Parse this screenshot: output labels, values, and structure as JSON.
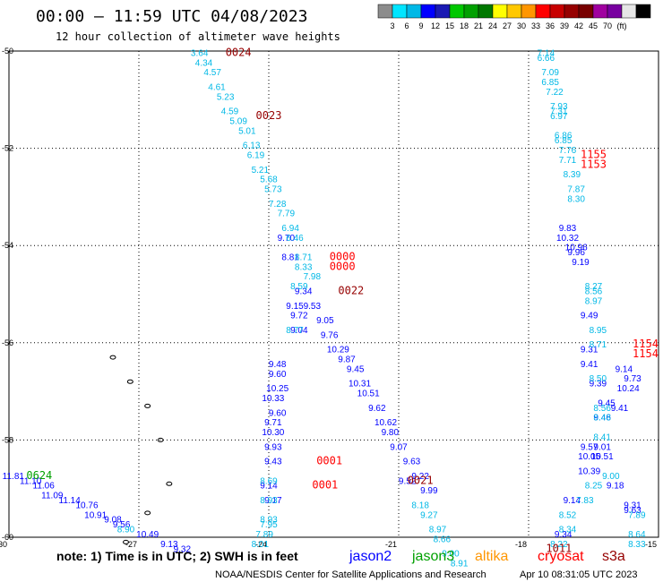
{
  "header": {
    "title": "00:00 – 11:59 UTC 04/08/2023",
    "subtitle": "12 hour collection of altimeter wave heights"
  },
  "legend": {
    "colors": [
      "#8c8c8c",
      "#00e5ff",
      "#00b8e6",
      "#0000ff",
      "#1a1ab3",
      "#00c800",
      "#00a000",
      "#007800",
      "#ffff00",
      "#ffc800",
      "#ff9600",
      "#ff0000",
      "#c80000",
      "#960000",
      "#780000",
      "#a000a0",
      "#7800a0",
      "#e6e6e6",
      "#000000"
    ],
    "labels": [
      "3",
      "6",
      "9",
      "12",
      "15",
      "18",
      "21",
      "24",
      "27",
      "30",
      "33",
      "36",
      "39",
      "42",
      "45",
      "70",
      "(ft)"
    ]
  },
  "footer": {
    "note": "note: 1) Time is in UTC; 2) SWH is in feet",
    "satellites": [
      {
        "name": "jason2",
        "color": "#0000ff"
      },
      {
        "name": "jason3",
        "color": "#00a000"
      },
      {
        "name": "altika",
        "color": "#ff9600"
      },
      {
        "name": "cryosat",
        "color": "#ff0000"
      },
      {
        "name": "s3a",
        "color": "#960000"
      }
    ],
    "credit": "NOAA/NESDIS Center for Satellite Applications and Research",
    "timestamp": "Apr 10 08:31:05 UTC 2023"
  },
  "chart_data": {
    "type": "scatter",
    "xlim": [
      -30,
      -15
    ],
    "ylim": [
      -60,
      -50
    ],
    "x_ticks": [
      {
        "v": -30,
        "label": "-30"
      },
      {
        "v": -27,
        "label": "-27"
      },
      {
        "v": -24,
        "label": "-24"
      },
      {
        "v": -21,
        "label": "-21"
      },
      {
        "v": -18,
        "label": "-18"
      },
      {
        "v": -15,
        "label": "-15"
      }
    ],
    "y_ticks": [
      {
        "v": -50,
        "label": "-50"
      },
      {
        "v": -52,
        "label": "-52"
      },
      {
        "v": -54,
        "label": "-54"
      },
      {
        "v": -56,
        "label": "-56"
      },
      {
        "v": -58,
        "label": "-58"
      },
      {
        "v": -60,
        "label": "-60"
      }
    ],
    "grid": true,
    "series": [
      {
        "name": "jason2",
        "color": "#0000ff",
        "points": [
          [
            -23.6,
            -53.9,
            "9.70"
          ],
          [
            -23.5,
            -54.3,
            "8.81"
          ],
          [
            -23.2,
            -55.0,
            "9.34"
          ],
          [
            -23.4,
            -55.3,
            "9.15"
          ],
          [
            -23.3,
            -55.5,
            "9.72"
          ],
          [
            -23.3,
            -55.8,
            "9.04"
          ],
          [
            -23.0,
            -55.3,
            "9.53"
          ],
          [
            -22.7,
            -55.6,
            "9.05"
          ],
          [
            -22.6,
            -55.9,
            "9.76"
          ],
          [
            -22.4,
            -56.2,
            "10.29"
          ],
          [
            -22.2,
            -56.4,
            "9.87"
          ],
          [
            -22.0,
            -56.6,
            "9.45"
          ],
          [
            -21.9,
            -56.9,
            "10.31"
          ],
          [
            -21.7,
            -57.1,
            "10.51"
          ],
          [
            -21.5,
            -57.4,
            "9.62"
          ],
          [
            -21.3,
            -57.7,
            "10.62"
          ],
          [
            -21.2,
            -57.9,
            "9.80"
          ],
          [
            -21.0,
            -58.2,
            "9.07"
          ],
          [
            -20.7,
            -58.5,
            "9.63"
          ],
          [
            -20.5,
            -58.8,
            "9.22"
          ],
          [
            -20.8,
            -58.9,
            "9.52"
          ],
          [
            -20.3,
            -59.1,
            "9.99"
          ],
          [
            -23.8,
            -56.5,
            "9.48"
          ],
          [
            -23.8,
            -56.7,
            "9.60"
          ],
          [
            -23.8,
            -57.0,
            "10.25"
          ],
          [
            -23.9,
            -57.2,
            "10.33"
          ],
          [
            -23.8,
            -57.5,
            "9.60"
          ],
          [
            -23.9,
            -57.7,
            "9.71"
          ],
          [
            -23.9,
            -57.9,
            "10.30"
          ],
          [
            -23.9,
            -58.2,
            "9.93"
          ],
          [
            -23.9,
            -58.5,
            "9.43"
          ],
          [
            -24.0,
            -59.0,
            "9.14"
          ],
          [
            -23.9,
            -59.3,
            "9.17"
          ],
          [
            -29.9,
            -58.8,
            "11.81"
          ],
          [
            -29.5,
            -58.9,
            "11.10"
          ],
          [
            -29.2,
            -59.0,
            "11.06"
          ],
          [
            -29.0,
            -59.2,
            "11.09"
          ],
          [
            -28.6,
            -59.3,
            "11.14"
          ],
          [
            -28.2,
            -59.4,
            "10.76"
          ],
          [
            -28.0,
            -59.6,
            "10.91"
          ],
          [
            -27.6,
            -59.7,
            "9.08"
          ],
          [
            -27.4,
            -59.8,
            "9.56"
          ],
          [
            -26.8,
            -60.0,
            "10.49"
          ],
          [
            -26.3,
            -60.2,
            "9.13"
          ],
          [
            -26.0,
            -60.3,
            "9.32"
          ],
          [
            -17.1,
            -53.7,
            "9.83"
          ],
          [
            -17.1,
            -53.9,
            "10.32"
          ],
          [
            -16.9,
            -54.1,
            "10.96"
          ],
          [
            -16.9,
            -54.2,
            "9.96"
          ],
          [
            -16.8,
            -54.4,
            "9.19"
          ],
          [
            -16.6,
            -55.5,
            "9.49"
          ],
          [
            -16.6,
            -56.2,
            "9.31"
          ],
          [
            -16.6,
            -56.5,
            "9.41"
          ],
          [
            -16.4,
            -56.9,
            "9.39"
          ],
          [
            -16.2,
            -57.3,
            "9.45"
          ],
          [
            -15.9,
            -57.4,
            "9.41"
          ],
          [
            -16.3,
            -57.6,
            "9.46"
          ],
          [
            -16.6,
            -58.2,
            "9.57"
          ],
          [
            -16.3,
            -58.2,
            "9.01"
          ],
          [
            -16.6,
            -58.4,
            "10.05"
          ],
          [
            -16.3,
            -58.4,
            "10.51"
          ],
          [
            -16.6,
            -58.7,
            "10.39"
          ],
          [
            -16.0,
            -59.0,
            "9.18"
          ],
          [
            -17.0,
            -59.3,
            "9.14"
          ],
          [
            -15.8,
            -56.6,
            "9.14"
          ],
          [
            -15.6,
            -56.8,
            "9.73"
          ],
          [
            -15.7,
            -57.0,
            "10.24"
          ],
          [
            -17.2,
            -60.0,
            "9.34"
          ],
          [
            -15.6,
            -59.4,
            "9.31"
          ],
          [
            -15.6,
            -59.5,
            "9.63"
          ]
        ]
      },
      {
        "name": "jason3",
        "color": "#00b8e6",
        "points": [
          [
            -25.6,
            -50.1,
            "3.64"
          ],
          [
            -25.5,
            -50.3,
            "4.34"
          ],
          [
            -25.3,
            -50.5,
            "4.57"
          ],
          [
            -25.2,
            -50.8,
            "4.61"
          ],
          [
            -25.0,
            -51.0,
            "5.23"
          ],
          [
            -24.9,
            -51.3,
            "4.59"
          ],
          [
            -24.7,
            -51.5,
            "5.09"
          ],
          [
            -24.5,
            -51.7,
            "5.01"
          ],
          [
            -24.4,
            -52.0,
            "6.13"
          ],
          [
            -24.3,
            -52.2,
            "6.19"
          ],
          [
            -24.2,
            -52.5,
            "5.21"
          ],
          [
            -24.0,
            -52.7,
            "5.68"
          ],
          [
            -23.9,
            -52.9,
            "5.73"
          ],
          [
            -23.8,
            -53.2,
            "7.28"
          ],
          [
            -23.6,
            -53.4,
            "7.79"
          ],
          [
            -23.5,
            -53.7,
            "6.94"
          ],
          [
            -23.4,
            -53.9,
            "6.46"
          ],
          [
            -23.2,
            -54.3,
            "8.71"
          ],
          [
            -23.2,
            -54.5,
            "8.33"
          ],
          [
            -23.0,
            -54.7,
            "7.98"
          ],
          [
            -23.3,
            -54.9,
            "8.59"
          ],
          [
            -23.4,
            -55.8,
            "8.77"
          ],
          [
            -24.0,
            -58.9,
            "8.69"
          ],
          [
            -24.0,
            -59.3,
            "8.93"
          ],
          [
            -24.0,
            -59.7,
            "8.93"
          ],
          [
            -24.0,
            -59.8,
            "7.95"
          ],
          [
            -24.1,
            -60.0,
            "7.89"
          ],
          [
            -24.2,
            -60.2,
            "8.01"
          ],
          [
            -20.5,
            -59.4,
            "8.18"
          ],
          [
            -20.3,
            -59.6,
            "9.27"
          ],
          [
            -20.1,
            -59.9,
            "8.97"
          ],
          [
            -20.0,
            -60.1,
            "8.66"
          ],
          [
            -19.8,
            -60.4,
            "9.00"
          ],
          [
            -19.6,
            -60.6,
            "8.91"
          ],
          [
            -27.3,
            -59.9,
            "8.90"
          ],
          [
            -17.6,
            -50.1,
            "7.14"
          ],
          [
            -17.6,
            -50.2,
            "6.66"
          ],
          [
            -17.5,
            -50.5,
            "7.09"
          ],
          [
            -17.5,
            -50.7,
            "6.85"
          ],
          [
            -17.4,
            -50.9,
            "7.22"
          ],
          [
            -17.3,
            -51.2,
            "7.93"
          ],
          [
            -17.3,
            -51.3,
            "7.31"
          ],
          [
            -17.3,
            -51.4,
            "6.97"
          ],
          [
            -17.2,
            -51.8,
            "6.86"
          ],
          [
            -17.2,
            -51.9,
            "6.85"
          ],
          [
            -17.1,
            -52.1,
            "7.76"
          ],
          [
            -17.1,
            -52.3,
            "7.71"
          ],
          [
            -17.0,
            -52.6,
            "8.39"
          ],
          [
            -16.9,
            -52.9,
            "7.87"
          ],
          [
            -16.9,
            -53.1,
            "8.30"
          ],
          [
            -16.5,
            -54.9,
            "8.27"
          ],
          [
            -16.5,
            -55.0,
            "8.56"
          ],
          [
            -16.5,
            -55.2,
            "8.97"
          ],
          [
            -16.4,
            -55.8,
            "8.95"
          ],
          [
            -16.4,
            -56.1,
            "8.71"
          ],
          [
            -16.4,
            -56.8,
            "8.50"
          ],
          [
            -16.3,
            -57.4,
            "8.56"
          ],
          [
            -16.3,
            -57.6,
            "8.48"
          ],
          [
            -16.3,
            -58.0,
            "8.41"
          ],
          [
            -16.1,
            -58.8,
            "9.00"
          ],
          [
            -16.5,
            -59.0,
            "8.25"
          ],
          [
            -16.7,
            -59.3,
            "7.83"
          ],
          [
            -17.1,
            -59.6,
            "8.52"
          ],
          [
            -17.1,
            -59.9,
            "8.34"
          ],
          [
            -17.3,
            -60.2,
            "8.22"
          ],
          [
            -15.5,
            -59.6,
            "7.89"
          ],
          [
            -15.5,
            -60.0,
            "8.64"
          ],
          [
            -15.5,
            -60.2,
            "8.33"
          ]
        ]
      },
      {
        "name": "jason3",
        "color": "#00a000",
        "points": [
          [
            -29.3,
            -58.8,
            "0624"
          ]
        ]
      },
      {
        "name": "s3a",
        "color": "#960000",
        "points": [
          [
            -24.7,
            -50.1,
            "0024"
          ],
          [
            -24.0,
            -51.4,
            "0023"
          ],
          [
            -22.1,
            -55.0,
            "0022"
          ],
          [
            -20.5,
            -58.9,
            "0021"
          ],
          [
            -17.3,
            -60.3,
            "1011"
          ]
        ]
      },
      {
        "name": "cryosat",
        "color": "#ff0000",
        "points": [
          [
            -22.3,
            -54.3,
            "0000"
          ],
          [
            -22.3,
            -54.5,
            "0000"
          ],
          [
            -22.6,
            -58.5,
            "0001"
          ],
          [
            -22.7,
            -59.0,
            "0001"
          ],
          [
            -16.5,
            -52.2,
            "1155"
          ],
          [
            -16.5,
            -52.4,
            "1153"
          ],
          [
            -15.3,
            -56.1,
            "1154"
          ],
          [
            -15.3,
            -56.3,
            "1154"
          ]
        ]
      }
    ],
    "coastline": [
      {
        "x": -27.6,
        "y": -56.3
      },
      {
        "x": -27.2,
        "y": -56.8
      },
      {
        "x": -26.8,
        "y": -57.3
      },
      {
        "x": -26.5,
        "y": -58.0
      },
      {
        "x": -26.3,
        "y": -58.9
      },
      {
        "x": -26.8,
        "y": -59.5
      },
      {
        "x": -27.3,
        "y": -60.1
      }
    ]
  }
}
